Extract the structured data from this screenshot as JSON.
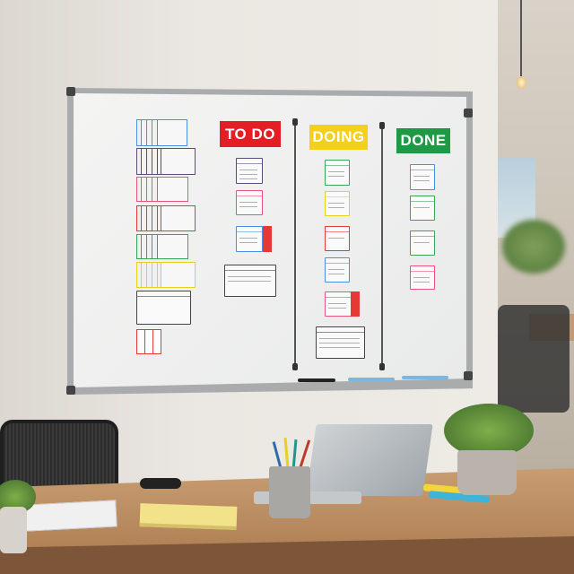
{
  "board": {
    "columns": [
      {
        "title": "TO DO",
        "color": "#e31e24"
      },
      {
        "title": "DOING",
        "color": "#f4d01c"
      },
      {
        "title": "DONE",
        "color": "#1e9a44"
      }
    ]
  },
  "colors": {
    "blue": "#4a90e2",
    "purple": "#5b4a7a",
    "pink": "#e8547a",
    "red": "#e53935",
    "green": "#3aa55a",
    "yellow": "#e8d020",
    "gray": "#444444"
  }
}
